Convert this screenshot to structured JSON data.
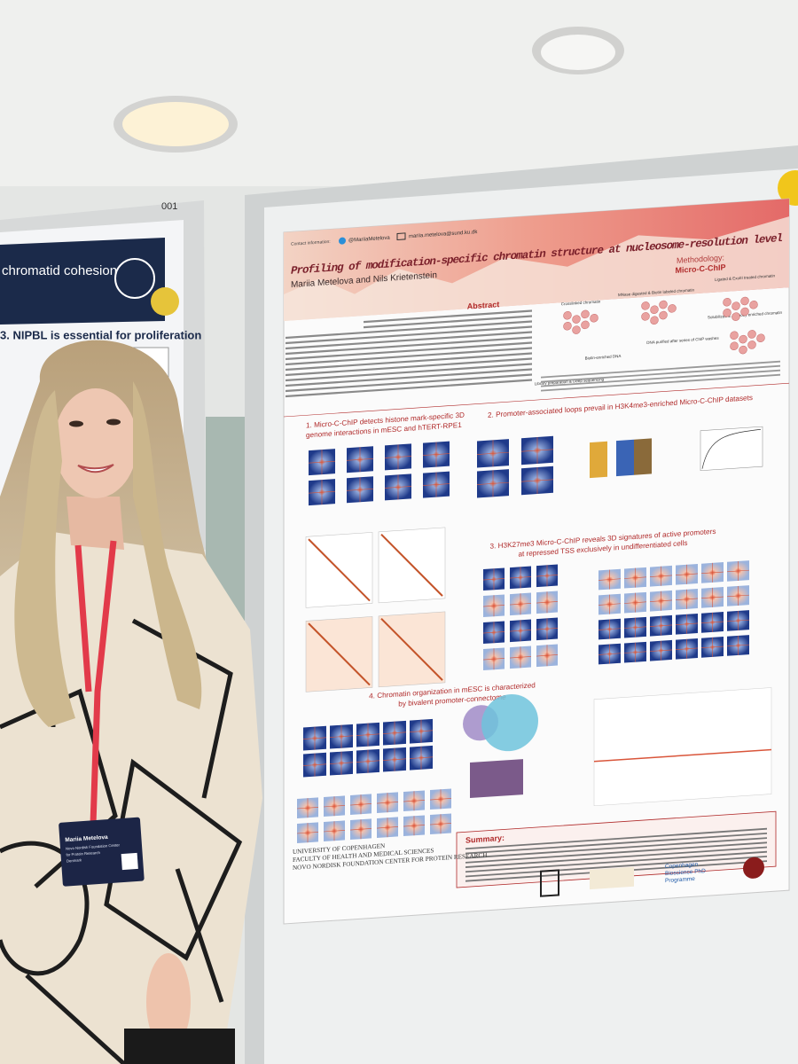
{
  "left_poster": {
    "number": "001",
    "header": "chromatid cohesion",
    "section": "3. NIPBL is essential for proliferation"
  },
  "poster": {
    "contact_label": "Contact information:",
    "twitter": "@MariiaMetelova",
    "email": "mariia.metelova@sund.ku.dk",
    "title": "Profiling of modification-specific chromatin structure at nucleosome-resolution level",
    "authors": "Mariia Metelova and Nils Krietenstein",
    "abstract_heading": "Abstract",
    "methodology": {
      "heading": [
        "Methodology:",
        "Micro-C-ChIP"
      ],
      "steps": [
        "Crosslinked chromatin",
        "MNase digested & Biotin labeled chromatin",
        "Ligated & ExoIII treated chromatin",
        "Solubilized & Antibody enriched chromatin",
        "Biotin-enriched DNA",
        "DNA purified after series of ChIP washes",
        "Library preparation & Deep sequencing"
      ]
    },
    "sections": [
      {
        "lines": [
          "1. Micro-C-ChIP detects histone mark-specific 3D",
          "genome interactions in mESC and hTERT-RPE1"
        ]
      },
      {
        "lines": [
          "2. Promoter-associated loops prevail in H3K4me3-enriched Micro-C-ChIP datasets"
        ]
      },
      {
        "lines": [
          "3. H3K27me3 Micro-C-ChIP reveals 3D signatures of active promoters",
          "at repressed TSS exclusively in undifferentiated cells"
        ]
      },
      {
        "lines": [
          "4. Chromatin organization in mESC is characterized",
          "by bivalent promoter-connectome"
        ]
      }
    ],
    "summary_heading": "Summary:",
    "affiliations": [
      "UNIVERSITY OF COPENHAGEN",
      "FACULTY OF HEALTH AND MEDICAL SCIENCES",
      "NOVO NORDISK FOUNDATION CENTER FOR PROTEIN RESEARCH"
    ],
    "programme": [
      "Copenhagen",
      "Bioscience PhD",
      "Programme"
    ]
  },
  "badge": {
    "name": "Mariia Metelova",
    "affiliation": [
      "Novo Nordisk Foundation Center",
      "for Protein Research",
      "Denmark"
    ]
  }
}
